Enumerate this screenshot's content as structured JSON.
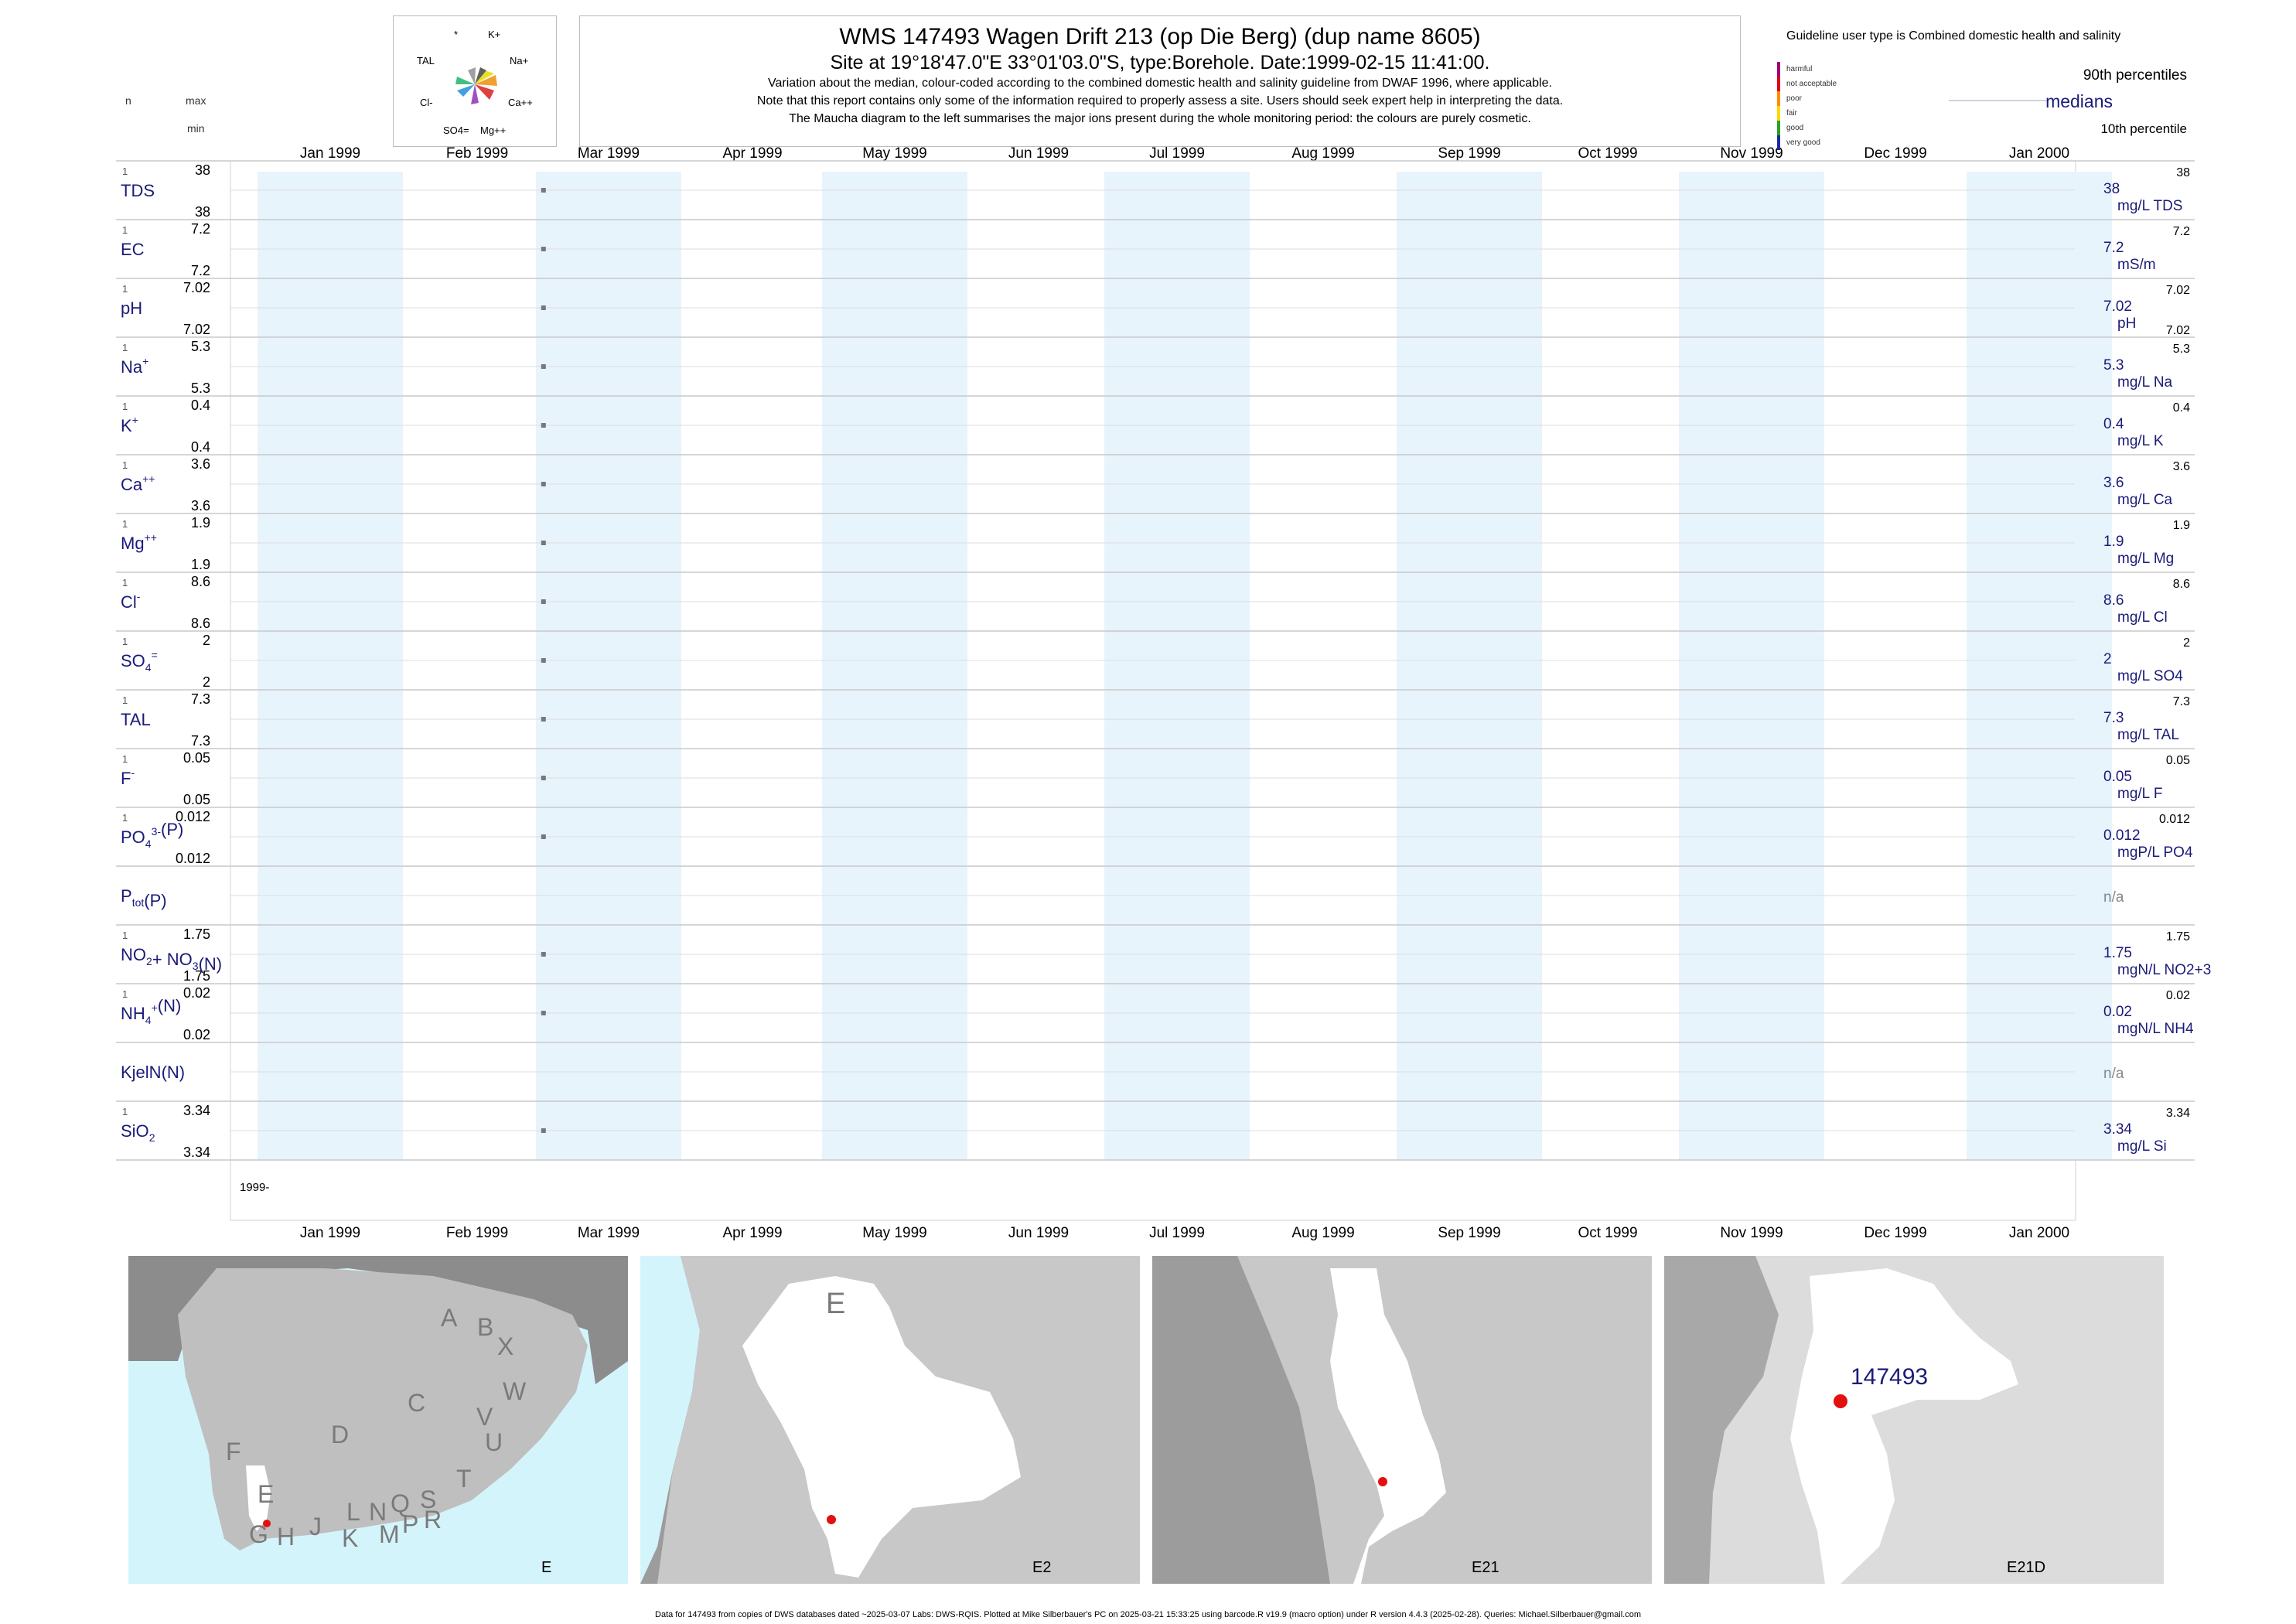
{
  "header": {
    "title": "WMS 147493  Wagen Drift 213 (op Die Berg) (dup name 8605)",
    "site_line": "Site at 19°18'47.0\"E 33°01'03.0\"S, type:Borehole. Date:1999-02-15 11:41:00.",
    "note1": "Variation about the median,  colour-coded according to the combined domestic health and salinity guideline from DWAF 1996, where applicable.",
    "note2": "Note that this report contains only some of the information required to properly assess a site. Users should seek expert help in interpreting the data.",
    "note3": "The Maucha diagram to the left summarises the major ions present during the whole monitoring period: the colours are purely cosmetic."
  },
  "maucha": {
    "labels": [
      "*",
      "K+",
      "TAL",
      "Na+",
      "Cl-",
      "Ca++",
      "SO4=",
      "Mg++"
    ]
  },
  "left_header": {
    "n": "n",
    "max": "max",
    "min": "min"
  },
  "legend": {
    "guideline": "Guideline user type is Combined domestic health and salinity",
    "classes": [
      {
        "label": "harmful",
        "color": "#a0007a"
      },
      {
        "label": "not acceptable",
        "color": "#e0001a"
      },
      {
        "label": "poor",
        "color": "#ff8c00"
      },
      {
        "label": "fair",
        "color": "#ffd700"
      },
      {
        "label": "good",
        "color": "#2aa02a"
      },
      {
        "label": "very good",
        "color": "#1a2aa0"
      }
    ],
    "p90": "90th percentiles",
    "medians": "medians",
    "p10": "10th percentile"
  },
  "chart_data": {
    "type": "scatter",
    "x_axis": {
      "range": [
        "1999-01-01",
        "2000-01-15"
      ],
      "ticks": [
        "Jan 1999",
        "Feb 1999",
        "Mar 1999",
        "Apr 1999",
        "May 1999",
        "Jun 1999",
        "Jul 1999",
        "Aug 1999",
        "Sep 1999",
        "Oct 1999",
        "Nov 1999",
        "Dec 1999",
        "Jan 2000"
      ],
      "year_label": "1999-"
    },
    "sample_date": "1999-02-15",
    "series": [
      {
        "name": "TDS",
        "n": "1",
        "max": "38",
        "min": "38",
        "median": "38",
        "unit": "mg/L TDS",
        "p90": "38",
        "p10": "",
        "value": 38
      },
      {
        "name": "EC",
        "n": "1",
        "max": "7.2",
        "min": "7.2",
        "median": "7.2",
        "unit": "mS/m",
        "p90": "7.2",
        "p10": "",
        "value": 7.2
      },
      {
        "name": "pH",
        "n": "1",
        "max": "7.02",
        "min": "7.02",
        "median": "7.02",
        "unit": "pH",
        "p90": "7.02",
        "p10": "7.02",
        "value": 7.02
      },
      {
        "name": "Na",
        "sup": "+",
        "n": "1",
        "max": "5.3",
        "min": "5.3",
        "median": "5.3",
        "unit": "mg/L Na",
        "p90": "5.3",
        "p10": "",
        "value": 5.3
      },
      {
        "name": "K",
        "sup": "+",
        "n": "1",
        "max": "0.4",
        "min": "0.4",
        "median": "0.4",
        "unit": "mg/L K",
        "p90": "0.4",
        "p10": "",
        "value": 0.4
      },
      {
        "name": "Ca",
        "sup": "++",
        "n": "1",
        "max": "3.6",
        "min": "3.6",
        "median": "3.6",
        "unit": "mg/L Ca",
        "p90": "3.6",
        "p10": "",
        "value": 3.6
      },
      {
        "name": "Mg",
        "sup": "++",
        "n": "1",
        "max": "1.9",
        "min": "1.9",
        "median": "1.9",
        "unit": "mg/L Mg",
        "p90": "1.9",
        "p10": "",
        "value": 1.9
      },
      {
        "name": "Cl",
        "sup": "-",
        "n": "1",
        "max": "8.6",
        "min": "8.6",
        "median": "8.6",
        "unit": "mg/L Cl",
        "p90": "8.6",
        "p10": "",
        "value": 8.6
      },
      {
        "name": "SO",
        "sub": "4",
        "sup": "=",
        "n": "1",
        "max": "2",
        "min": "2",
        "median": "2",
        "unit": "mg/L SO4",
        "p90": "2",
        "p10": "",
        "value": 2
      },
      {
        "name": "TAL",
        "n": "1",
        "max": "7.3",
        "min": "7.3",
        "median": "7.3",
        "unit": "mg/L TAL",
        "p90": "7.3",
        "p10": "",
        "value": 7.3
      },
      {
        "name": "F",
        "sup": "-",
        "n": "1",
        "max": "0.05",
        "min": "0.05",
        "median": "0.05",
        "unit": "mg/L F",
        "p90": "0.05",
        "p10": "",
        "value": 0.05
      },
      {
        "name": "PO",
        "sub": "4",
        "sup": "3-",
        "tail": "(P)",
        "n": "1",
        "max": "0.012",
        "min": "0.012",
        "median": "0.012",
        "unit": "mgP/L PO4",
        "p90": "0.012",
        "p10": "",
        "value": 0.012
      },
      {
        "name": "P",
        "sub": "tot",
        "tail": "(P)",
        "n": "",
        "max": "",
        "min": "",
        "median": "n/a",
        "unit": "",
        "p90": "",
        "p10": "",
        "value": null
      },
      {
        "name": "NO",
        "sub": "2",
        "tail": "+ NO",
        "sub2": "3",
        "tail2": "(N)",
        "n": "1",
        "max": "1.75",
        "min": "1.75",
        "median": "1.75",
        "unit": "mgN/L NO2+3",
        "p90": "1.75",
        "p10": "",
        "value": 1.75
      },
      {
        "name": "NH",
        "sub": "4",
        "sup": "+",
        "tail": "(N)",
        "n": "1",
        "max": "0.02",
        "min": "0.02",
        "median": "0.02",
        "unit": "mgN/L NH4",
        "p90": "0.02",
        "p10": "",
        "value": 0.02
      },
      {
        "name": "KjelN(N)",
        "n": "",
        "max": "",
        "min": "",
        "median": "n/a",
        "unit": "",
        "p90": "",
        "p10": "",
        "value": null
      },
      {
        "name": "SiO",
        "sub": "2",
        "n": "1",
        "max": "3.34",
        "min": "3.34",
        "median": "3.34",
        "unit": "mg/L Si",
        "p90": "3.34",
        "p10": "",
        "value": 3.34
      }
    ]
  },
  "maps": [
    {
      "caption": "E",
      "letters": [
        "A",
        "B",
        "X",
        "W",
        "C",
        "V",
        "U",
        "D",
        "T",
        "F",
        "E",
        "S",
        "R",
        "Q",
        "P",
        "M",
        "N",
        "L",
        "K",
        "J",
        "H",
        "G"
      ]
    },
    {
      "caption": "E2",
      "letters": [
        "E"
      ]
    },
    {
      "caption": "E21",
      "letters": []
    },
    {
      "caption": "E21D",
      "site_label": "147493"
    }
  ],
  "colors": {
    "band": "#e8f4fc",
    "sea": "#d4f4fc",
    "land_dark": "#8c8c8c",
    "land": "#bfbfbf",
    "catchment": "#ffffff",
    "site": "#e41010",
    "label_blue": "#1a1a7a"
  },
  "footer": "Data for 147493 from copies of DWS databases dated ~2025-03-07 Labs: DWS-RQIS. Plotted at Mike Silberbauer's PC on 2025-03-21 15:33:25 using barcode.R v19.9 (macro option) under R version 4.4.3 (2025-02-28). Queries: Michael.Silberbauer@gmail.com"
}
